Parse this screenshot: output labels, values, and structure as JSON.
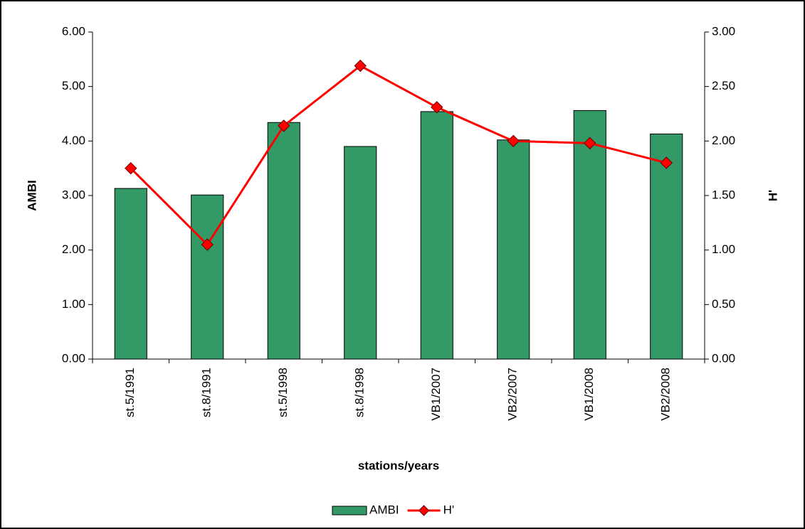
{
  "chart_data": {
    "type": "bar-line",
    "x_label": "stations/years",
    "y_label": "AMBI",
    "y2_label": "H'",
    "categories": [
      "st.5/1991",
      "st.8/1991",
      "st.5/1998",
      "st.8/1998",
      "VB1/2007",
      "VB2/2007",
      "VB1/2008",
      "VB2/2008"
    ],
    "series": [
      {
        "name": "AMBI",
        "type": "bar",
        "color": "#339966",
        "values": [
          3.13,
          3.01,
          4.34,
          3.9,
          4.54,
          4.02,
          4.56,
          4.13
        ]
      },
      {
        "name": "H'",
        "type": "line",
        "axis": "y2",
        "color": "#ff0000",
        "values": [
          1.75,
          1.05,
          2.14,
          2.69,
          2.31,
          2.0,
          1.98,
          1.8
        ]
      }
    ],
    "ylim": [
      0,
      6
    ],
    "yticks": [
      {
        "value": 0,
        "label": "0.00"
      },
      {
        "value": 1,
        "label": "1.00"
      },
      {
        "value": 2,
        "label": "2.00"
      },
      {
        "value": 3,
        "label": "3.00"
      },
      {
        "value": 4,
        "label": "4.00"
      },
      {
        "value": 5,
        "label": "5.00"
      },
      {
        "value": 6,
        "label": "6.00"
      }
    ],
    "y2lim": [
      0,
      3
    ],
    "y2ticks": [
      {
        "value": 0,
        "label": "0.00"
      },
      {
        "value": 0.5,
        "label": "0.50"
      },
      {
        "value": 1,
        "label": "1.00"
      },
      {
        "value": 1.5,
        "label": "1.50"
      },
      {
        "value": 2,
        "label": "2.00"
      },
      {
        "value": 2.5,
        "label": "2.50"
      },
      {
        "value": 3,
        "label": "3.00"
      }
    ],
    "grid": false,
    "legend": "bottom"
  }
}
